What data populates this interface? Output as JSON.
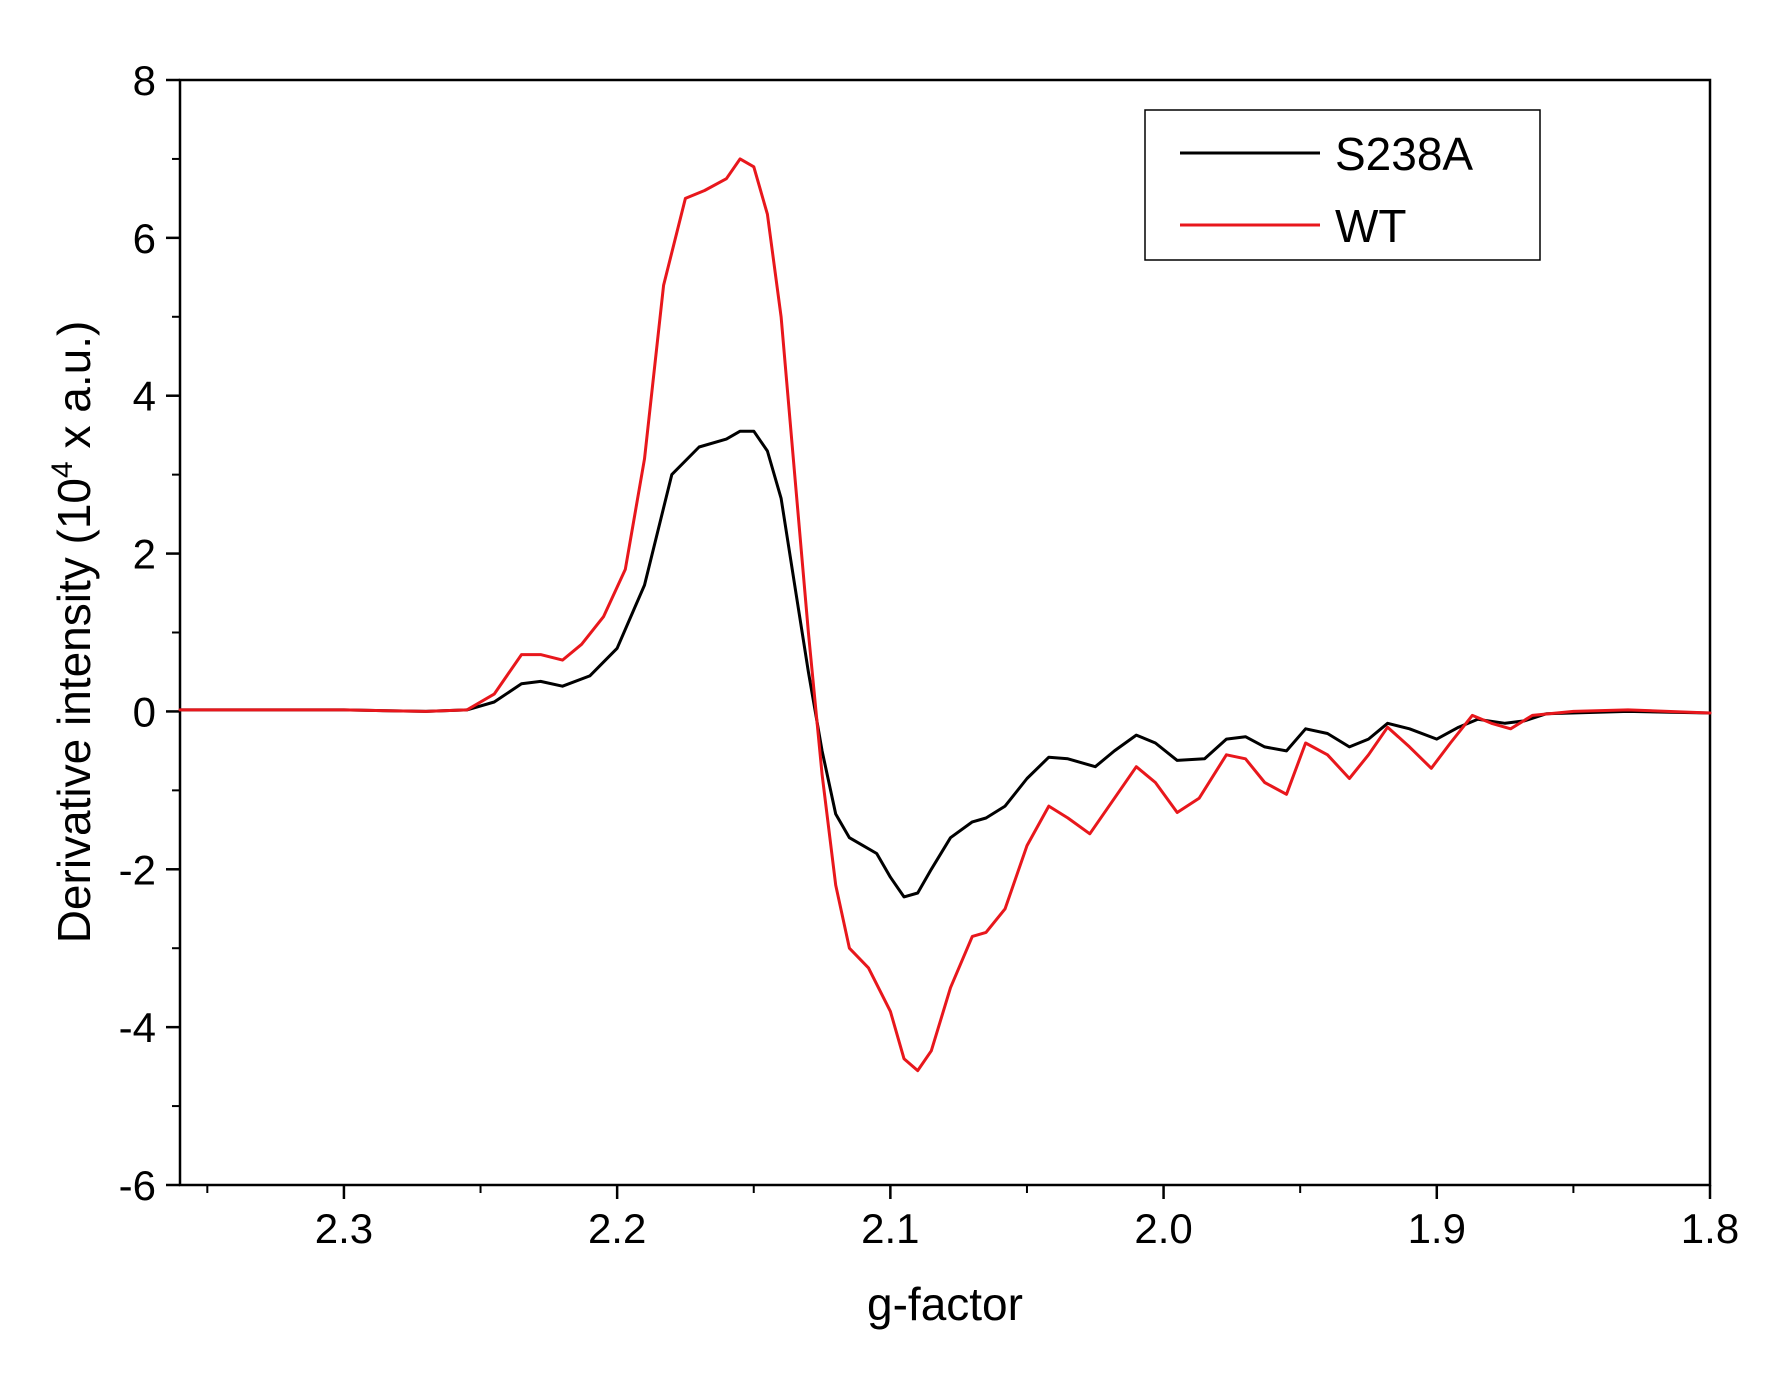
{
  "chart_data": {
    "type": "line",
    "xlabel": "g-factor",
    "ylabel_prefix": "Derivative intensity (10",
    "ylabel_sup": "4",
    "ylabel_suffix": " x a.u.)",
    "xlim": [
      2.36,
      1.8
    ],
    "ylim": [
      -6,
      8
    ],
    "x_reversed": true,
    "xticks": [
      2.3,
      2.2,
      2.1,
      2.0,
      1.9,
      1.8
    ],
    "xtick_labels": [
      "2.3",
      "2.2",
      "2.1",
      "2.0",
      "1.9",
      "1.8"
    ],
    "yticks": [
      -6,
      -4,
      -2,
      0,
      2,
      4,
      6,
      8
    ],
    "ytick_labels": [
      "-6",
      "-4",
      "-2",
      "0",
      "2",
      "4",
      "6",
      "8"
    ],
    "grid": false,
    "legend_position": "top-right",
    "series": [
      {
        "name": "S238A",
        "color": "#000000",
        "points": [
          [
            2.36,
            0.02
          ],
          [
            2.3,
            0.02
          ],
          [
            2.27,
            0.0
          ],
          [
            2.255,
            0.02
          ],
          [
            2.245,
            0.12
          ],
          [
            2.235,
            0.35
          ],
          [
            2.228,
            0.38
          ],
          [
            2.22,
            0.32
          ],
          [
            2.21,
            0.45
          ],
          [
            2.2,
            0.8
          ],
          [
            2.19,
            1.6
          ],
          [
            2.18,
            3.0
          ],
          [
            2.17,
            3.35
          ],
          [
            2.16,
            3.45
          ],
          [
            2.155,
            3.55
          ],
          [
            2.15,
            3.55
          ],
          [
            2.145,
            3.3
          ],
          [
            2.14,
            2.7
          ],
          [
            2.135,
            1.6
          ],
          [
            2.13,
            0.5
          ],
          [
            2.125,
            -0.5
          ],
          [
            2.12,
            -1.3
          ],
          [
            2.115,
            -1.6
          ],
          [
            2.11,
            -1.7
          ],
          [
            2.105,
            -1.8
          ],
          [
            2.1,
            -2.1
          ],
          [
            2.095,
            -2.35
          ],
          [
            2.09,
            -2.3
          ],
          [
            2.085,
            -2.0
          ],
          [
            2.078,
            -1.6
          ],
          [
            2.07,
            -1.4
          ],
          [
            2.065,
            -1.35
          ],
          [
            2.058,
            -1.2
          ],
          [
            2.05,
            -0.85
          ],
          [
            2.042,
            -0.58
          ],
          [
            2.035,
            -0.6
          ],
          [
            2.025,
            -0.7
          ],
          [
            2.018,
            -0.5
          ],
          [
            2.01,
            -0.3
          ],
          [
            2.003,
            -0.4
          ],
          [
            1.995,
            -0.62
          ],
          [
            1.985,
            -0.6
          ],
          [
            1.977,
            -0.35
          ],
          [
            1.97,
            -0.32
          ],
          [
            1.963,
            -0.45
          ],
          [
            1.955,
            -0.5
          ],
          [
            1.948,
            -0.22
          ],
          [
            1.94,
            -0.28
          ],
          [
            1.932,
            -0.45
          ],
          [
            1.925,
            -0.35
          ],
          [
            1.918,
            -0.15
          ],
          [
            1.91,
            -0.22
          ],
          [
            1.9,
            -0.35
          ],
          [
            1.892,
            -0.2
          ],
          [
            1.885,
            -0.1
          ],
          [
            1.875,
            -0.15
          ],
          [
            1.868,
            -0.12
          ],
          [
            1.86,
            -0.03
          ],
          [
            1.83,
            0.0
          ],
          [
            1.8,
            -0.02
          ]
        ]
      },
      {
        "name": "WT",
        "color": "#e8171c",
        "points": [
          [
            2.36,
            0.02
          ],
          [
            2.3,
            0.02
          ],
          [
            2.27,
            0.0
          ],
          [
            2.255,
            0.02
          ],
          [
            2.245,
            0.22
          ],
          [
            2.235,
            0.72
          ],
          [
            2.228,
            0.72
          ],
          [
            2.22,
            0.65
          ],
          [
            2.213,
            0.85
          ],
          [
            2.205,
            1.2
          ],
          [
            2.197,
            1.8
          ],
          [
            2.19,
            3.2
          ],
          [
            2.183,
            5.4
          ],
          [
            2.175,
            6.5
          ],
          [
            2.168,
            6.6
          ],
          [
            2.16,
            6.75
          ],
          [
            2.155,
            7.0
          ],
          [
            2.15,
            6.9
          ],
          [
            2.145,
            6.3
          ],
          [
            2.14,
            5.0
          ],
          [
            2.135,
            3.0
          ],
          [
            2.13,
            1.0
          ],
          [
            2.125,
            -0.8
          ],
          [
            2.12,
            -2.2
          ],
          [
            2.115,
            -3.0
          ],
          [
            2.108,
            -3.25
          ],
          [
            2.1,
            -3.8
          ],
          [
            2.095,
            -4.4
          ],
          [
            2.09,
            -4.55
          ],
          [
            2.085,
            -4.3
          ],
          [
            2.078,
            -3.5
          ],
          [
            2.07,
            -2.85
          ],
          [
            2.065,
            -2.8
          ],
          [
            2.058,
            -2.5
          ],
          [
            2.05,
            -1.7
          ],
          [
            2.042,
            -1.2
          ],
          [
            2.035,
            -1.35
          ],
          [
            2.027,
            -1.55
          ],
          [
            2.018,
            -1.1
          ],
          [
            2.01,
            -0.7
          ],
          [
            2.003,
            -0.9
          ],
          [
            1.995,
            -1.28
          ],
          [
            1.987,
            -1.1
          ],
          [
            1.977,
            -0.55
          ],
          [
            1.97,
            -0.6
          ],
          [
            1.963,
            -0.9
          ],
          [
            1.955,
            -1.05
          ],
          [
            1.948,
            -0.4
          ],
          [
            1.94,
            -0.55
          ],
          [
            1.932,
            -0.85
          ],
          [
            1.925,
            -0.55
          ],
          [
            1.918,
            -0.2
          ],
          [
            1.91,
            -0.45
          ],
          [
            1.902,
            -0.72
          ],
          [
            1.895,
            -0.4
          ],
          [
            1.887,
            -0.05
          ],
          [
            1.88,
            -0.15
          ],
          [
            1.873,
            -0.22
          ],
          [
            1.865,
            -0.05
          ],
          [
            1.85,
            0.0
          ],
          [
            1.83,
            0.02
          ],
          [
            1.8,
            -0.02
          ]
        ]
      }
    ]
  }
}
